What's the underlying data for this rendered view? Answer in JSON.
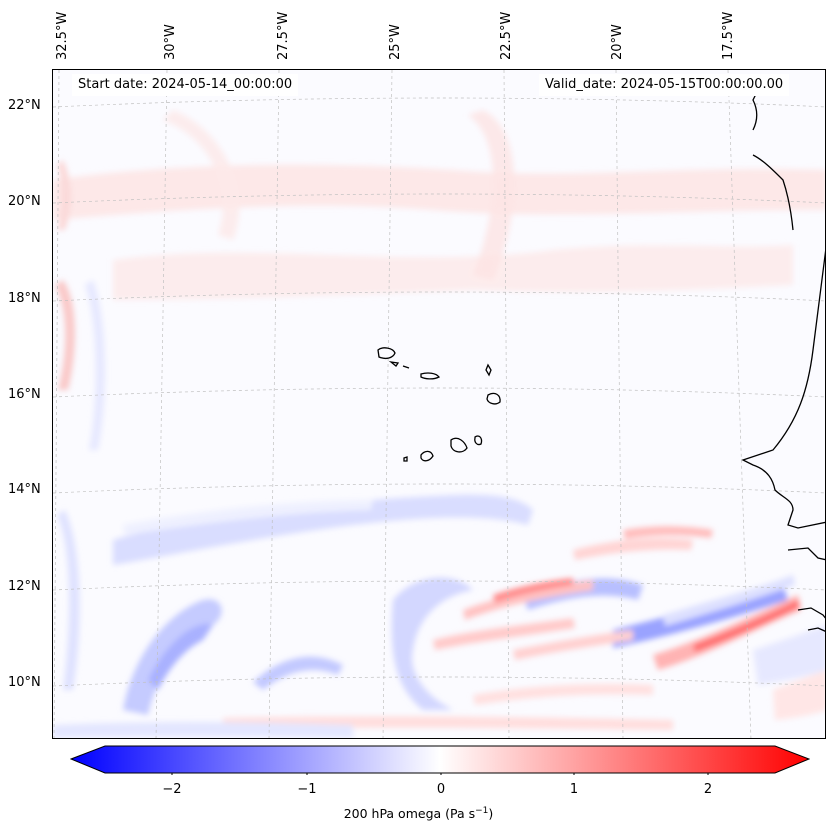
{
  "map": {
    "variable_label": "200 hPa omega (Pa s",
    "variable_unit_exp": "−1",
    "variable_unit_close": ")",
    "start_date": "Start date: 2024-05-14_00:00:00",
    "valid_date": "Valid_date: 2024-05-15T00:00:00.00",
    "lon_labels": [
      "32.5°W",
      "30°W",
      "27.5°W",
      "25°W",
      "22.5°W",
      "20°W",
      "17.5°W"
    ],
    "lat_labels": [
      "22°N",
      "20°N",
      "18°N",
      "16°N",
      "14°N",
      "12°N",
      "10°N"
    ],
    "colorbar_ticks": [
      "−2",
      "−1",
      "0",
      "1",
      "2"
    ],
    "colorbar_range": [
      -2.7,
      2.5
    ]
  },
  "colors": {
    "negative": "#0000ff",
    "zero": "#ffffff",
    "positive": "#ff0000",
    "coastline": "#000000",
    "gridline": "#c0c0c0"
  }
}
